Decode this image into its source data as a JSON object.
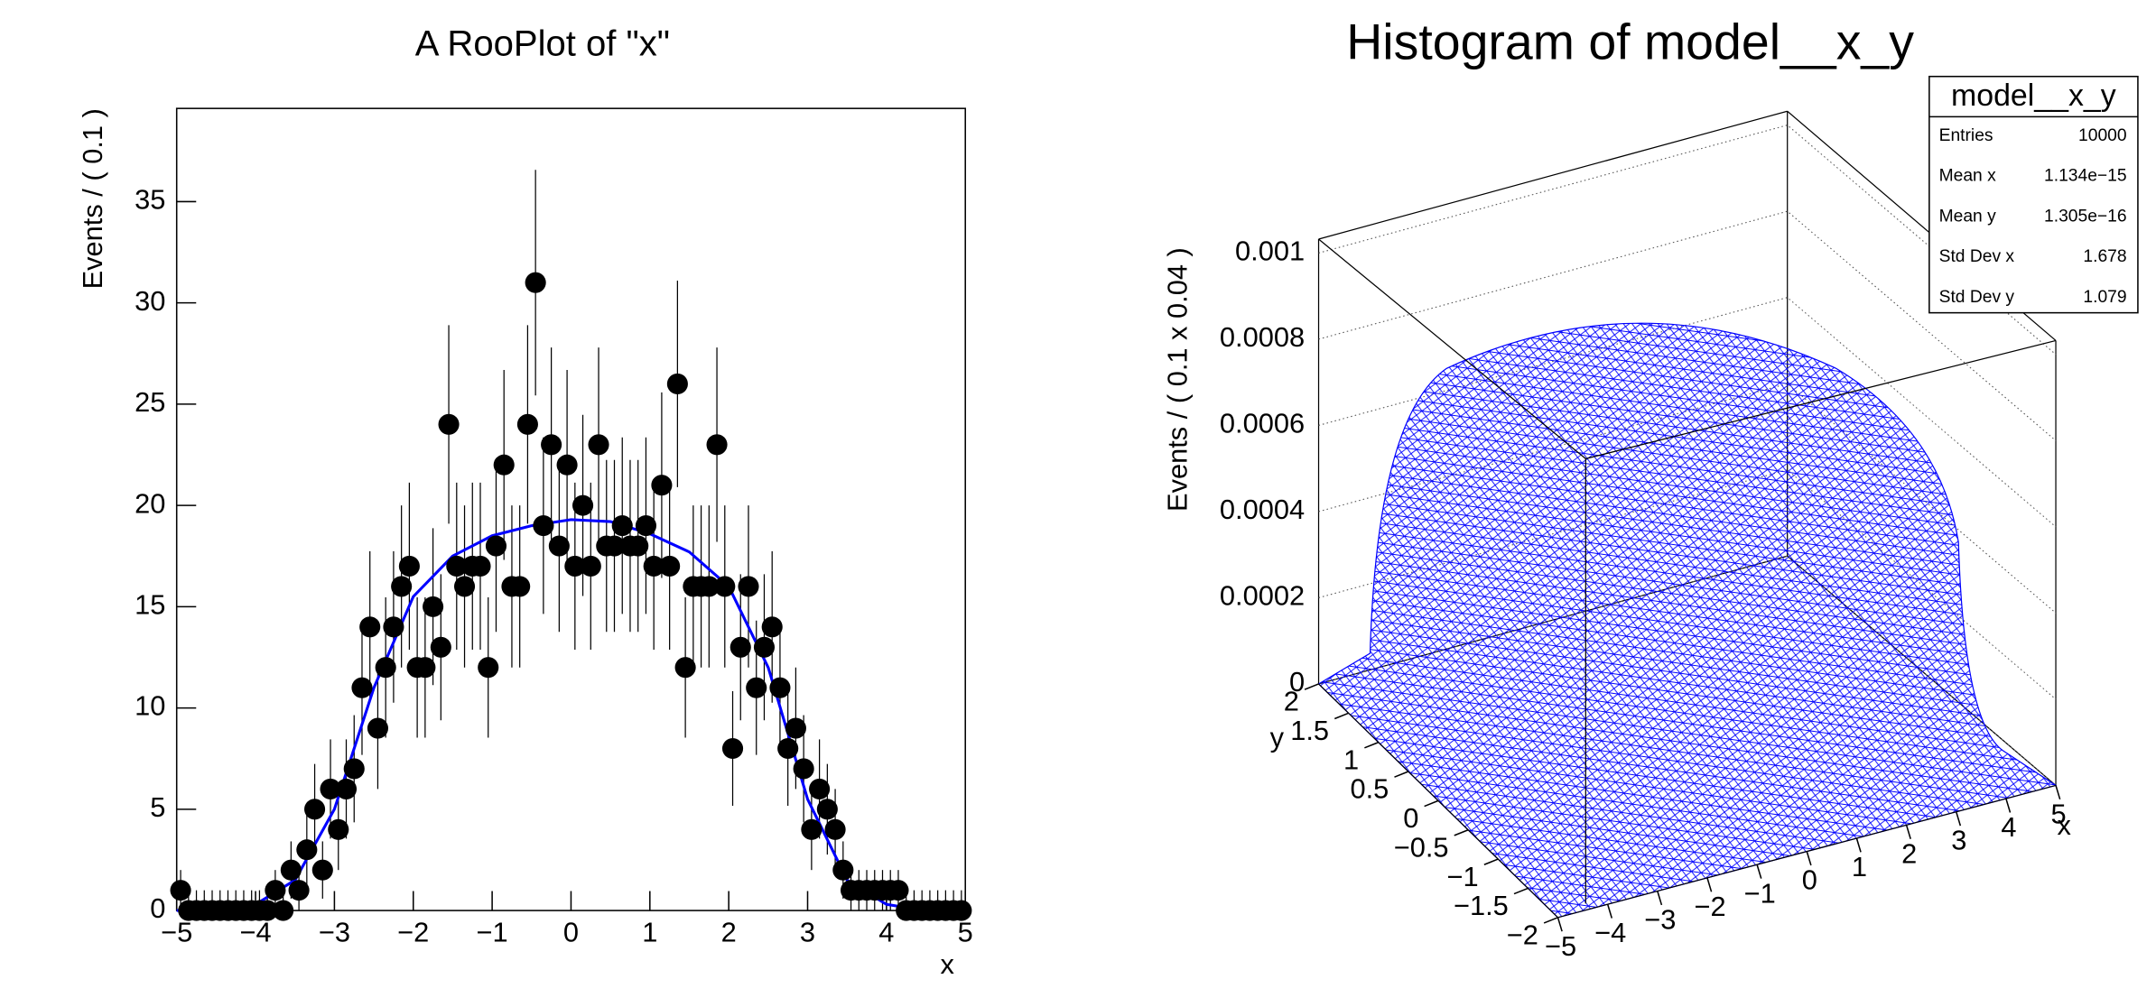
{
  "chart_data": [
    {
      "type": "scatter",
      "title": "A RooPlot of \"x\"",
      "x_label": "x",
      "y_label": "Events / ( 0.1 )",
      "color": "#000000",
      "fit_color": "#0000ff",
      "x": [
        -4.95,
        -4.85,
        -4.75,
        -4.65,
        -4.55,
        -4.45,
        -4.35,
        -4.25,
        -4.15,
        -4.05,
        -3.95,
        -3.85,
        -3.75,
        -3.65,
        -3.55,
        -3.45,
        -3.35,
        -3.25,
        -3.15,
        -3.05,
        -2.95,
        -2.85,
        -2.75,
        -2.65,
        -2.55,
        -2.45,
        -2.35,
        -2.25,
        -2.15,
        -2.05,
        -1.95,
        -1.85,
        -1.75,
        -1.65,
        -1.55,
        -1.45,
        -1.35,
        -1.25,
        -1.15,
        -1.05,
        -0.95,
        -0.85,
        -0.75,
        -0.65,
        -0.55,
        -0.45,
        -0.35,
        -0.25,
        -0.15,
        -0.05,
        0.05,
        0.15,
        0.25,
        0.35,
        0.45,
        0.55,
        0.65,
        0.75,
        0.85,
        0.95,
        1.05,
        1.15,
        1.25,
        1.35,
        1.45,
        1.55,
        1.65,
        1.75,
        1.85,
        1.95,
        2.05,
        2.15,
        2.25,
        2.35,
        2.45,
        2.55,
        2.65,
        2.75,
        2.85,
        2.95,
        3.05,
        3.15,
        3.25,
        3.35,
        3.45,
        3.55,
        3.65,
        3.75,
        3.85,
        3.95,
        4.05,
        4.15,
        4.25,
        4.35,
        4.45,
        4.55,
        4.65,
        4.75,
        4.85,
        4.95
      ],
      "values": [
        1,
        0,
        0,
        0,
        0,
        0,
        0,
        0,
        0,
        0,
        0,
        0,
        1,
        0,
        2,
        1,
        3,
        5,
        2,
        6,
        4,
        6,
        7,
        11,
        14,
        9,
        12,
        14,
        16,
        17,
        12,
        12,
        15,
        13,
        24,
        17,
        16,
        17,
        17,
        12,
        18,
        22,
        16,
        16,
        24,
        31,
        19,
        23,
        18,
        22,
        17,
        20,
        17,
        23,
        18,
        18,
        19,
        18,
        18,
        19,
        17,
        21,
        17,
        26,
        12,
        16,
        16,
        16,
        23,
        16,
        8,
        13,
        16,
        11,
        13,
        14,
        11,
        8,
        9,
        7,
        4,
        6,
        5,
        4,
        2,
        1,
        1,
        1,
        1,
        1,
        1,
        1,
        0,
        0,
        0,
        0,
        0,
        0,
        0,
        0
      ],
      "fit_x": [
        -5,
        -4.5,
        -4,
        -3.5,
        -3,
        -2.5,
        -2,
        -1.5,
        -1,
        -0.5,
        0,
        0.5,
        1,
        1.5,
        2,
        2.5,
        3,
        3.5,
        4,
        4.5,
        5
      ],
      "fit_values": [
        0,
        0,
        0.3,
        1.5,
        5,
        11,
        15.5,
        17.5,
        18.5,
        19,
        19.3,
        19.2,
        18.6,
        17.7,
        16,
        12,
        5.5,
        1.5,
        0.3,
        0,
        0
      ],
      "xlim": [
        -5,
        5
      ],
      "ylim": [
        0,
        39.6
      ],
      "xticks": [
        {
          "value": -5,
          "label": "−5"
        },
        {
          "value": -4,
          "label": "−4"
        },
        {
          "value": -3,
          "label": "−3"
        },
        {
          "value": -2,
          "label": "−2"
        },
        {
          "value": -1,
          "label": "−1"
        },
        0,
        1,
        2,
        3,
        4,
        5
      ],
      "yticks": [
        0,
        5,
        10,
        15,
        20,
        25,
        30,
        35
      ]
    },
    {
      "type": "surface",
      "title": "Histogram of model__x_y",
      "x_label": "x",
      "y_label": "y",
      "z_label": "Events / ( 0.1 x 0.04 )",
      "color": "#0000ff",
      "xlim": [
        -5,
        5
      ],
      "ylim": [
        -2,
        2
      ],
      "zlim": [
        0,
        0.001
      ],
      "xticks": [
        {
          "value": -5,
          "label": "−5"
        },
        {
          "value": -4,
          "label": "−4"
        },
        {
          "value": -3,
          "label": "−3"
        },
        {
          "value": -2,
          "label": "−2"
        },
        {
          "value": -1,
          "label": "−1"
        },
        0,
        1,
        2,
        3,
        4,
        5
      ],
      "yticks": [
        {
          "value": -2,
          "label": "−2"
        },
        {
          "value": -1.5,
          "label": "−1.5"
        },
        {
          "value": -1,
          "label": "−1"
        },
        {
          "value": -0.5,
          "label": "−0.5"
        },
        0,
        0.5,
        1,
        1.5,
        2
      ],
      "zticks": [
        0,
        0.0002,
        0.0004,
        0.0006,
        0.0008,
        0.001
      ],
      "stats": {
        "title": "model__x_y",
        "rows": [
          [
            "Entries",
            "10000"
          ],
          [
            "Mean x",
            "1.134e−15"
          ],
          [
            "Mean y",
            "1.305e−16"
          ],
          [
            "Std Dev x",
            "1.678"
          ],
          [
            "Std Dev y",
            "1.079"
          ]
        ]
      }
    }
  ]
}
